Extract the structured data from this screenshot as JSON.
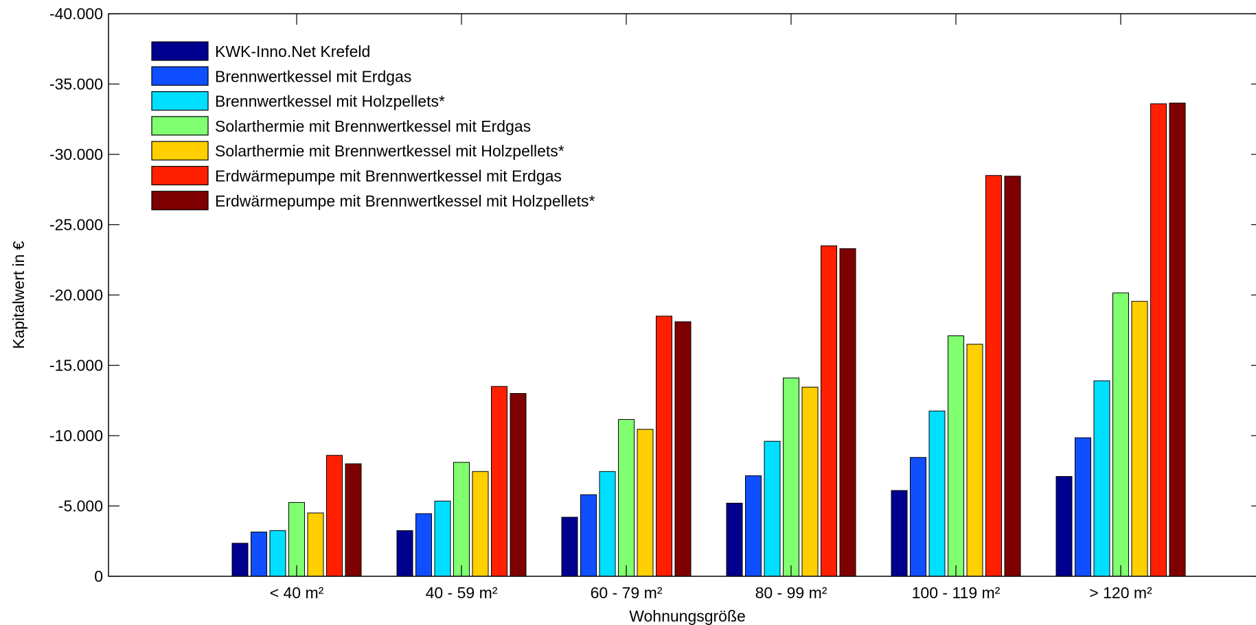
{
  "chart_data": {
    "type": "bar",
    "title": "",
    "xlabel": "Wohnungsgröße",
    "ylabel": "Kapitalwert in €",
    "ylim": [
      0,
      -40000
    ],
    "y_axis_direction": "reversed (0 at bottom, -40.000 at top)",
    "y_ticks": [
      0,
      -5000,
      -10000,
      -15000,
      -20000,
      -25000,
      -30000,
      -35000,
      -40000
    ],
    "y_tick_labels": [
      "0",
      "-5.000",
      "-10.000",
      "-15.000",
      "-20.000",
      "-25.000",
      "-30.000",
      "-35.000",
      "-40.000"
    ],
    "categories": [
      "< 40 m²",
      "40 - 59 m²",
      "60 - 79 m²",
      "80 - 99 m²",
      "100 - 119 m²",
      "> 120 m²"
    ],
    "grid": false,
    "legend_position": "top-left",
    "series": [
      {
        "name": "KWK-Inno.Net Krefeld",
        "color": "#00008F",
        "values": [
          -2350,
          -3250,
          -4200,
          -5200,
          -6100,
          -7100
        ]
      },
      {
        "name": "Brennwertkessel mit Erdgas",
        "color": "#0F4FFF",
        "values": [
          -3150,
          -4450,
          -5800,
          -7150,
          -8450,
          -9850
        ]
      },
      {
        "name": "Brennwertkessel mit Holzpellets*",
        "color": "#00DFFF",
        "values": [
          -3250,
          -5350,
          -7450,
          -9600,
          -11750,
          -13900
        ]
      },
      {
        "name": "Solarthermie mit Brennwertkessel mit Erdgas",
        "color": "#80FF70",
        "values": [
          -5250,
          -8100,
          -11150,
          -14100,
          -17100,
          -20150
        ]
      },
      {
        "name": "Solarthermie mit Brennwertkessel mit Holzpellets*",
        "color": "#FFCF00",
        "values": [
          -4500,
          -7450,
          -10450,
          -13450,
          -16500,
          -19550
        ]
      },
      {
        "name": "Erdwärmepumpe mit Brennwertkessel mit Erdgas",
        "color": "#FF2000",
        "values": [
          -8600,
          -13500,
          -18500,
          -23500,
          -28500,
          -33600
        ]
      },
      {
        "name": "Erdwärmepumpe mit Brennwertkessel mit Holzpellets*",
        "color": "#7F0000",
        "values": [
          -8000,
          -13000,
          -18100,
          -23300,
          -28450,
          -33650
        ]
      }
    ]
  }
}
